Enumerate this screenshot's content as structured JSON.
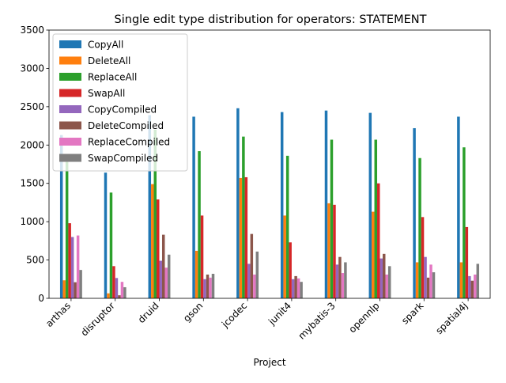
{
  "chart_data": {
    "type": "bar",
    "title": "Single edit type distribution for operators: STATEMENT",
    "xlabel": "Project",
    "ylabel": "",
    "ylim": [
      0,
      3500
    ],
    "yticks": [
      0,
      500,
      1000,
      1500,
      2000,
      2500,
      3000,
      3500
    ],
    "grid": false,
    "legend_position": "top-left",
    "categories": [
      "arthas",
      "disruptor",
      "druid",
      "gson",
      "jcodec",
      "junit4",
      "mybatis-3",
      "opennlp",
      "spark",
      "spatial4j"
    ],
    "series": [
      {
        "name": "CopyAll",
        "color": "#1f77b4",
        "values": [
          2130,
          1640,
          2390,
          2370,
          2480,
          2430,
          2450,
          2420,
          2220,
          2370
        ]
      },
      {
        "name": "DeleteAll",
        "color": "#ff7f0e",
        "values": [
          235,
          65,
          1490,
          620,
          1570,
          1080,
          1240,
          1130,
          470,
          470
        ]
      },
      {
        "name": "ReplaceAll",
        "color": "#2ca02c",
        "values": [
          1780,
          1380,
          2200,
          1920,
          2110,
          1860,
          2070,
          2070,
          1830,
          1970
        ]
      },
      {
        "name": "SwapAll",
        "color": "#d62728",
        "values": [
          980,
          420,
          1290,
          1080,
          1580,
          730,
          1220,
          1500,
          1060,
          930
        ]
      },
      {
        "name": "CopyCompiled",
        "color": "#9467bd",
        "values": [
          800,
          265,
          490,
          250,
          450,
          250,
          440,
          520,
          540,
          290
        ]
      },
      {
        "name": "DeleteCompiled",
        "color": "#8c564b",
        "values": [
          210,
          40,
          830,
          310,
          840,
          290,
          540,
          580,
          270,
          230
        ]
      },
      {
        "name": "ReplaceCompiled",
        "color": "#e377c2",
        "values": [
          820,
          215,
          400,
          270,
          310,
          260,
          330,
          310,
          440,
          310
        ]
      },
      {
        "name": "SwapCompiled",
        "color": "#7f7f7f",
        "values": [
          370,
          145,
          570,
          320,
          610,
          215,
          470,
          420,
          340,
          450
        ]
      }
    ]
  }
}
